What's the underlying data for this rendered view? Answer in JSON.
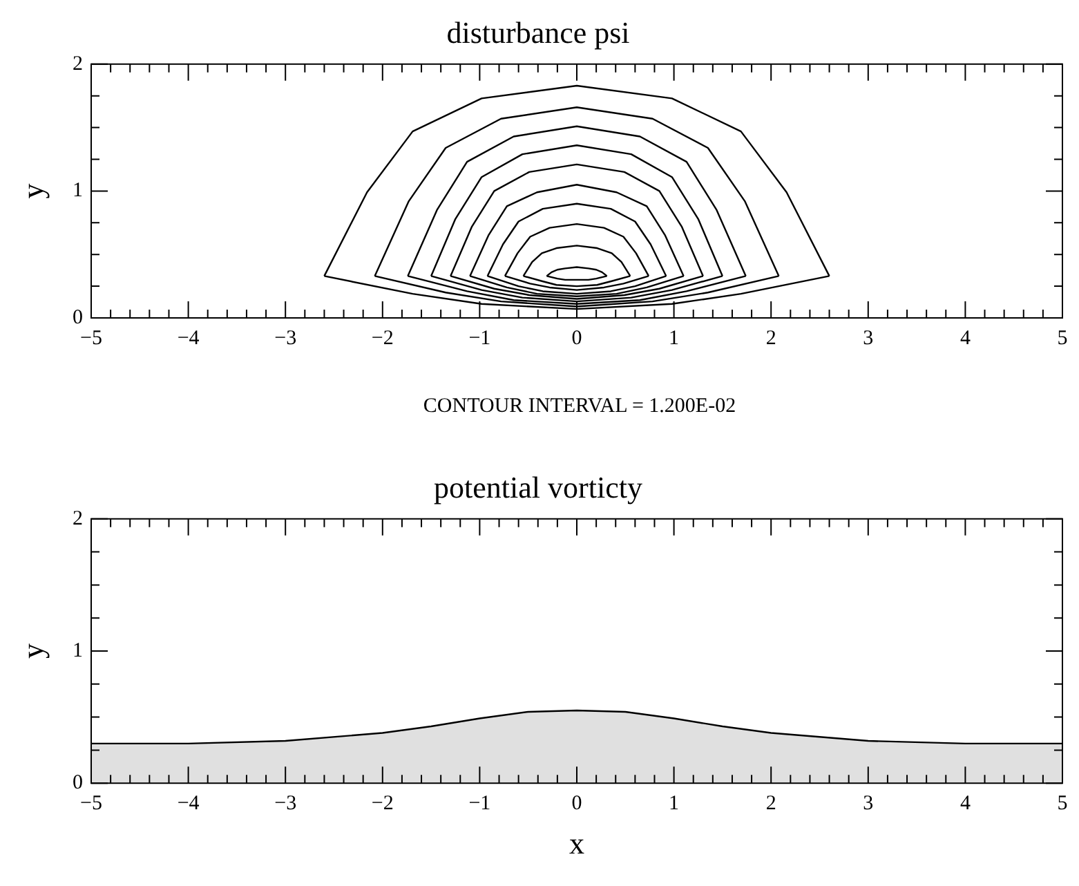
{
  "chart_data": [
    {
      "type": "line",
      "title": "disturbance psi",
      "ylabel": "y",
      "annotations": [
        "CONTOUR INTERVAL = 1.200E-02"
      ],
      "xlim": [
        -5,
        5
      ],
      "ylim": [
        0,
        2
      ],
      "xticks": [
        -5,
        -4,
        -3,
        -2,
        -1,
        0,
        1,
        2,
        3,
        4,
        5
      ],
      "yticks": [
        0,
        1,
        2
      ],
      "grid": false,
      "legend": false,
      "series": [
        {
          "color": "#000000",
          "x": [
            -2.6,
            -2.16,
            -1.69,
            -0.98,
            0,
            0.98,
            1.69,
            2.16,
            2.6
          ],
          "values": [
            0.33,
            0.99,
            1.47,
            1.73,
            1.83,
            1.73,
            1.47,
            0.99,
            0.33
          ]
        },
        {
          "color": "#000000",
          "x": [
            -2.6,
            -1.69,
            -0.98,
            0,
            0.98,
            1.69,
            2.6
          ],
          "values": [
            0.33,
            0.19,
            0.11,
            0.07,
            0.11,
            0.19,
            0.33
          ]
        },
        {
          "color": "#000000",
          "x": [
            -2.08,
            -1.73,
            -1.35,
            -0.78,
            0,
            0.78,
            1.35,
            1.73,
            2.08
          ],
          "values": [
            0.33,
            0.92,
            1.34,
            1.57,
            1.66,
            1.57,
            1.34,
            0.92,
            0.33
          ]
        },
        {
          "color": "#000000",
          "x": [
            -2.08,
            -1.35,
            -0.78,
            0,
            0.78,
            1.35,
            2.08
          ],
          "values": [
            0.33,
            0.2,
            0.13,
            0.09,
            0.13,
            0.2,
            0.33
          ]
        },
        {
          "color": "#000000",
          "x": [
            -1.74,
            -1.44,
            -1.13,
            -0.65,
            0,
            0.65,
            1.13,
            1.44,
            1.74
          ],
          "values": [
            0.33,
            0.85,
            1.23,
            1.43,
            1.51,
            1.43,
            1.23,
            0.85,
            0.33
          ]
        },
        {
          "color": "#000000",
          "x": [
            -1.74,
            -1.13,
            -0.65,
            0,
            0.65,
            1.13,
            1.74
          ],
          "values": [
            0.33,
            0.21,
            0.14,
            0.11,
            0.14,
            0.21,
            0.33
          ]
        },
        {
          "color": "#000000",
          "x": [
            -1.5,
            -1.25,
            -0.98,
            -0.56,
            0,
            0.56,
            0.98,
            1.25,
            1.5
          ],
          "values": [
            0.33,
            0.78,
            1.11,
            1.29,
            1.36,
            1.29,
            1.11,
            0.78,
            0.33
          ]
        },
        {
          "color": "#000000",
          "x": [
            -1.5,
            -0.98,
            -0.56,
            0,
            0.56,
            0.98,
            1.5
          ],
          "values": [
            0.33,
            0.22,
            0.16,
            0.13,
            0.16,
            0.22,
            0.33
          ]
        },
        {
          "color": "#000000",
          "x": [
            -1.3,
            -1.08,
            -0.85,
            -0.49,
            0,
            0.49,
            0.85,
            1.08,
            1.3
          ],
          "values": [
            0.33,
            0.72,
            1.0,
            1.15,
            1.21,
            1.15,
            1.0,
            0.72,
            0.33
          ]
        },
        {
          "color": "#000000",
          "x": [
            -1.3,
            -0.85,
            -0.49,
            0,
            0.49,
            0.85,
            1.3
          ],
          "values": [
            0.33,
            0.23,
            0.18,
            0.15,
            0.18,
            0.23,
            0.33
          ]
        },
        {
          "color": "#000000",
          "x": [
            -1.1,
            -0.91,
            -0.72,
            -0.41,
            0,
            0.41,
            0.72,
            0.91,
            1.1
          ],
          "values": [
            0.33,
            0.65,
            0.88,
            0.99,
            1.05,
            0.99,
            0.88,
            0.65,
            0.33
          ]
        },
        {
          "color": "#000000",
          "x": [
            -1.1,
            -0.72,
            -0.41,
            0,
            0.41,
            0.72,
            1.1
          ],
          "values": [
            0.33,
            0.24,
            0.19,
            0.17,
            0.19,
            0.24,
            0.33
          ]
        },
        {
          "color": "#000000",
          "x": [
            -0.92,
            -0.76,
            -0.6,
            -0.35,
            0,
            0.35,
            0.6,
            0.76,
            0.92
          ],
          "values": [
            0.33,
            0.58,
            0.76,
            0.86,
            0.9,
            0.86,
            0.76,
            0.58,
            0.33
          ]
        },
        {
          "color": "#000000",
          "x": [
            -0.92,
            -0.6,
            -0.35,
            0,
            0.35,
            0.6,
            0.92
          ],
          "values": [
            0.33,
            0.25,
            0.21,
            0.19,
            0.21,
            0.25,
            0.33
          ]
        },
        {
          "color": "#000000",
          "x": [
            -0.74,
            -0.61,
            -0.48,
            -0.28,
            0,
            0.28,
            0.48,
            0.61,
            0.74
          ],
          "values": [
            0.33,
            0.51,
            0.64,
            0.71,
            0.74,
            0.71,
            0.64,
            0.51,
            0.33
          ]
        },
        {
          "color": "#000000",
          "x": [
            -0.74,
            -0.48,
            -0.28,
            0,
            0.28,
            0.48,
            0.74
          ],
          "values": [
            0.33,
            0.27,
            0.24,
            0.22,
            0.24,
            0.27,
            0.33
          ]
        },
        {
          "color": "#000000",
          "x": [
            -0.55,
            -0.46,
            -0.36,
            -0.21,
            0,
            0.21,
            0.36,
            0.46,
            0.55
          ],
          "values": [
            0.33,
            0.44,
            0.51,
            0.55,
            0.57,
            0.55,
            0.51,
            0.44,
            0.33
          ]
        },
        {
          "color": "#000000",
          "x": [
            -0.55,
            -0.36,
            -0.21,
            0,
            0.21,
            0.36,
            0.55
          ],
          "values": [
            0.33,
            0.29,
            0.26,
            0.25,
            0.26,
            0.29,
            0.33
          ]
        },
        {
          "color": "#000000",
          "x": [
            -0.31,
            -0.26,
            -0.2,
            -0.12,
            0,
            0.12,
            0.2,
            0.26,
            0.31
          ],
          "values": [
            0.33,
            0.36,
            0.38,
            0.39,
            0.4,
            0.39,
            0.38,
            0.36,
            0.33
          ]
        },
        {
          "color": "#000000",
          "x": [
            -0.31,
            -0.2,
            -0.12,
            0,
            0.12,
            0.2,
            0.31
          ],
          "values": [
            0.33,
            0.31,
            0.3,
            0.3,
            0.3,
            0.31,
            0.33
          ]
        }
      ]
    },
    {
      "type": "area",
      "title": "potential vorticty",
      "xlabel": "x",
      "ylabel": "y",
      "xlim": [
        -5,
        5
      ],
      "ylim": [
        0,
        2
      ],
      "xticks": [
        -5,
        -4,
        -3,
        -2,
        -1,
        0,
        1,
        2,
        3,
        4,
        5
      ],
      "yticks": [
        0,
        1,
        2
      ],
      "grid": false,
      "legend": false,
      "series": [
        {
          "color": "#000000",
          "x": [
            -5,
            -4,
            -3,
            -2,
            -1.5,
            -1,
            -0.5,
            0,
            0.5,
            1,
            1.5,
            2,
            3,
            4,
            5
          ],
          "values": [
            0.3,
            0.3,
            0.32,
            0.38,
            0.43,
            0.49,
            0.54,
            0.55,
            0.54,
            0.49,
            0.43,
            0.38,
            0.32,
            0.3,
            0.3
          ]
        }
      ]
    }
  ]
}
